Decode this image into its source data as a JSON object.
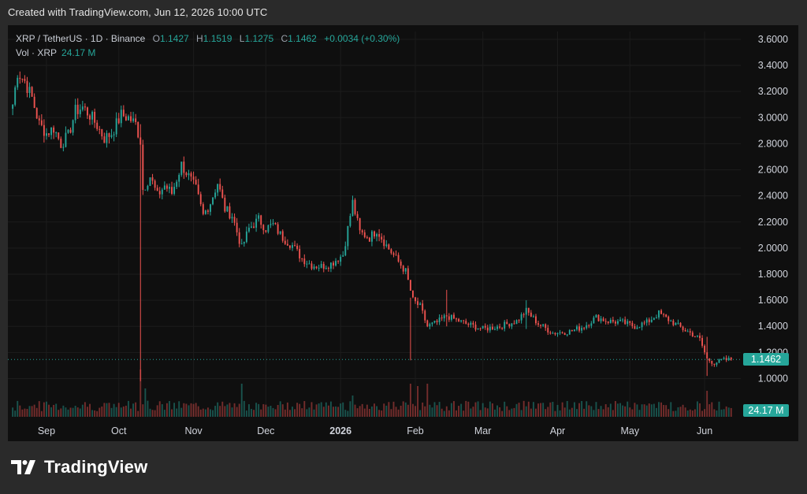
{
  "caption": "Created with TradingView.com, Jun 12, 2026 10:00 UTC",
  "brand": {
    "name": "TradingView",
    "logo_icon": "tradingview-logo-icon"
  },
  "legend": {
    "symbol": "XRP / TetherUS · 1D · Binance",
    "open_label": "O",
    "open": "1.1427",
    "high_label": "H",
    "high": "1.1519",
    "low_label": "L",
    "low": "1.1275",
    "close_label": "C",
    "close": "1.1462",
    "change": "+0.0034 (+0.30%)",
    "vol_label": "Vol · XRP",
    "vol_value": "24.17 M"
  },
  "price_tag": {
    "value": "1.1462",
    "color": "#26a69a"
  },
  "volume_tag": {
    "value": "24.17 M",
    "color": "#26a69a"
  },
  "colors": {
    "up": "#26a69a",
    "down": "#ef5350",
    "background": "#0f0f0f"
  },
  "chart_data": {
    "type": "candlestick",
    "interval": "1D",
    "y_axis": {
      "ticks": [
        "3.6000",
        "3.4000",
        "3.2000",
        "3.0000",
        "2.8000",
        "2.6000",
        "2.4000",
        "2.2000",
        "2.0000",
        "1.8000",
        "1.6000",
        "1.4000",
        "1.2000",
        "1.0000"
      ],
      "range": [
        0.87,
        3.66
      ]
    },
    "x_axis": {
      "ticks": [
        {
          "label": "Sep",
          "date": "2025-09-01"
        },
        {
          "label": "Oct",
          "date": "2025-10-01"
        },
        {
          "label": "Nov",
          "date": "2025-11-01"
        },
        {
          "label": "Dec",
          "date": "2025-12-01"
        },
        {
          "label": "2026",
          "date": "2026-01-01",
          "bold": true
        },
        {
          "label": "Feb",
          "date": "2026-02-01"
        },
        {
          "label": "Mar",
          "date": "2026-03-01"
        },
        {
          "label": "Apr",
          "date": "2026-04-01"
        },
        {
          "label": "May",
          "date": "2026-05-01"
        },
        {
          "label": "Jun",
          "date": "2026-06-01"
        }
      ],
      "range": [
        "2025-08-16",
        "2026-06-16"
      ]
    },
    "last_close": 1.1462,
    "close_path": [
      [
        "2025-08-18",
        3.1
      ],
      [
        "2025-08-20",
        3.35
      ],
      [
        "2025-08-23",
        3.28
      ],
      [
        "2025-08-26",
        3.15
      ],
      [
        "2025-08-29",
        2.95
      ],
      [
        "2025-09-01",
        2.88
      ],
      [
        "2025-09-04",
        2.92
      ],
      [
        "2025-09-07",
        2.8
      ],
      [
        "2025-09-10",
        2.86
      ],
      [
        "2025-09-13",
        3.05
      ],
      [
        "2025-09-16",
        3.08
      ],
      [
        "2025-09-19",
        3.02
      ],
      [
        "2025-09-22",
        2.94
      ],
      [
        "2025-09-25",
        2.84
      ],
      [
        "2025-09-28",
        2.88
      ],
      [
        "2025-10-02",
        3.02
      ],
      [
        "2025-10-05",
        3.0
      ],
      [
        "2025-10-08",
        2.95
      ],
      [
        "2025-10-10",
        2.82
      ],
      [
        "2025-10-11",
        2.45
      ],
      [
        "2025-10-14",
        2.55
      ],
      [
        "2025-10-17",
        2.4
      ],
      [
        "2025-10-20",
        2.48
      ],
      [
        "2025-10-23",
        2.42
      ],
      [
        "2025-10-27",
        2.64
      ],
      [
        "2025-10-30",
        2.55
      ],
      [
        "2025-11-02",
        2.45
      ],
      [
        "2025-11-05",
        2.25
      ],
      [
        "2025-11-08",
        2.35
      ],
      [
        "2025-11-11",
        2.5
      ],
      [
        "2025-11-14",
        2.3
      ],
      [
        "2025-11-17",
        2.25
      ],
      [
        "2025-11-21",
        2.0
      ],
      [
        "2025-11-24",
        2.15
      ],
      [
        "2025-11-28",
        2.22
      ],
      [
        "2025-12-01",
        2.15
      ],
      [
        "2025-12-04",
        2.18
      ],
      [
        "2025-12-08",
        2.08
      ],
      [
        "2025-12-12",
        2.02
      ],
      [
        "2025-12-16",
        1.92
      ],
      [
        "2025-12-20",
        1.87
      ],
      [
        "2025-12-24",
        1.86
      ],
      [
        "2025-12-28",
        1.88
      ],
      [
        "2026-01-02",
        1.95
      ],
      [
        "2026-01-06",
        2.35
      ],
      [
        "2026-01-09",
        2.12
      ],
      [
        "2026-01-13",
        2.08
      ],
      [
        "2026-01-16",
        2.14
      ],
      [
        "2026-01-20",
        2.02
      ],
      [
        "2026-01-24",
        1.92
      ],
      [
        "2026-01-28",
        1.82
      ],
      [
        "2026-01-31",
        1.6
      ],
      [
        "2026-02-03",
        1.55
      ],
      [
        "2026-02-06",
        1.4
      ],
      [
        "2026-02-10",
        1.43
      ],
      [
        "2026-02-14",
        1.48
      ],
      [
        "2026-02-18",
        1.45
      ],
      [
        "2026-02-22",
        1.42
      ],
      [
        "2026-03-01",
        1.38
      ],
      [
        "2026-03-08",
        1.4
      ],
      [
        "2026-03-15",
        1.44
      ],
      [
        "2026-03-19",
        1.52
      ],
      [
        "2026-03-24",
        1.42
      ],
      [
        "2026-03-30",
        1.35
      ],
      [
        "2026-04-06",
        1.36
      ],
      [
        "2026-04-12",
        1.4
      ],
      [
        "2026-04-17",
        1.47
      ],
      [
        "2026-04-22",
        1.44
      ],
      [
        "2026-04-28",
        1.43
      ],
      [
        "2026-05-03",
        1.4
      ],
      [
        "2026-05-08",
        1.43
      ],
      [
        "2026-05-13",
        1.5
      ],
      [
        "2026-05-18",
        1.44
      ],
      [
        "2026-05-23",
        1.38
      ],
      [
        "2026-05-27",
        1.34
      ],
      [
        "2026-05-30",
        1.3
      ],
      [
        "2026-06-02",
        1.15
      ],
      [
        "2026-06-05",
        1.12
      ],
      [
        "2026-06-08",
        1.14
      ],
      [
        "2026-06-12",
        1.1462
      ]
    ],
    "wicks": [
      {
        "date": "2025-10-10",
        "high": 2.95,
        "low": 0.98
      },
      {
        "date": "2026-01-30",
        "high": 1.62,
        "low": 1.14
      },
      {
        "date": "2026-02-14",
        "high": 1.68,
        "low": 1.4
      },
      {
        "date": "2026-03-19",
        "high": 1.6,
        "low": 1.38
      },
      {
        "date": "2026-06-02",
        "high": 1.32,
        "low": 1.02
      }
    ],
    "volume_spikes": [
      {
        "date": "2025-10-10",
        "volume": 1.0
      },
      {
        "date": "2025-10-12",
        "volume": 0.6
      },
      {
        "date": "2025-11-21",
        "volume": 0.7
      },
      {
        "date": "2026-01-06",
        "volume": 0.45
      },
      {
        "date": "2026-01-30",
        "volume": 0.7
      },
      {
        "date": "2026-02-02",
        "volume": 0.65
      },
      {
        "date": "2026-02-06",
        "volume": 0.7
      },
      {
        "date": "2026-06-02",
        "volume": 0.55
      }
    ]
  }
}
